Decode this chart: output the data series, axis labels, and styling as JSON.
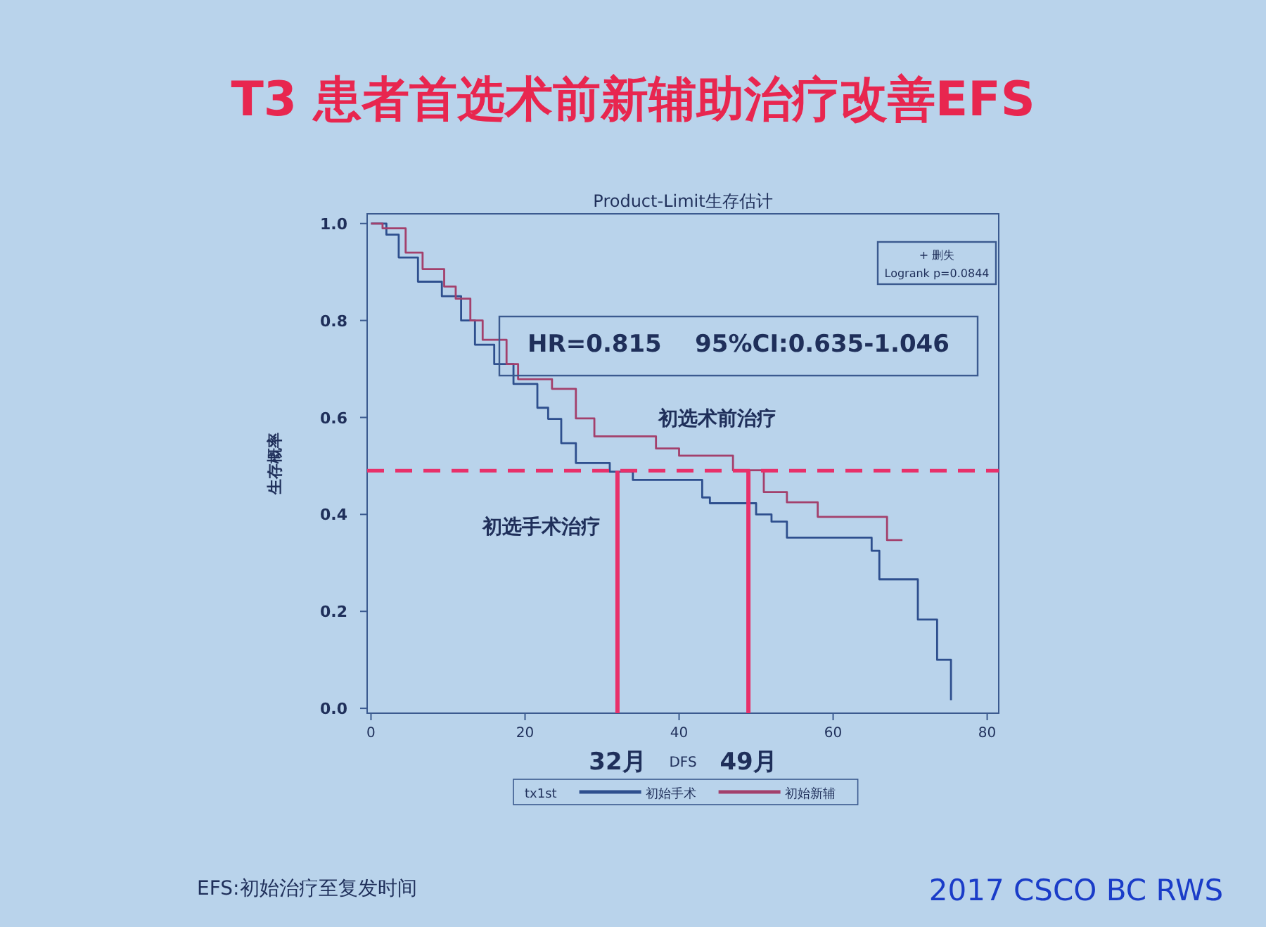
{
  "chart_data": {
    "type": "step",
    "title": "T3 患者首选术前新辅助治疗改善EFS",
    "subtitle": "Product-Limit生存估计",
    "xlabel": "DFS",
    "ylabel": "生存概率",
    "legend_title": "tx1st",
    "legend": "bottom",
    "marker": "none",
    "line_style": "solid",
    "grid": false,
    "xlim": [
      -0.5,
      81.5
    ],
    "ylim": [
      -0.01,
      1.02
    ],
    "xticks": [
      0,
      20,
      40,
      60,
      80
    ],
    "yticks": [
      {
        "value": 0,
        "label": "0.0"
      },
      0.2,
      0.4,
      0.6,
      0.8,
      {
        "value": 1,
        "label": "1.0"
      }
    ],
    "series": [
      {
        "name": "初始手术",
        "color": "#2e4f8e",
        "x": [
          0,
          2,
          3.6,
          6.1,
          9.2,
          11.7,
          13.5,
          16,
          18.5,
          21.6,
          23,
          24.7,
          26.6,
          31,
          34,
          43,
          44,
          50,
          52,
          54,
          65,
          66,
          71,
          73.5,
          75.3
        ],
        "values": [
          1,
          0.977,
          0.93,
          0.88,
          0.85,
          0.8,
          0.75,
          0.71,
          0.669,
          0.62,
          0.597,
          0.547,
          0.506,
          0.488,
          0.471,
          0.435,
          0.423,
          0.4,
          0.385,
          0.352,
          0.325,
          0.266,
          0.183,
          0.1,
          0.017
        ]
      },
      {
        "name": "初始新辅",
        "color": "#a3406c",
        "x": [
          0,
          1.5,
          4.5,
          6.7,
          9.5,
          11,
          12.9,
          14.5,
          17.6,
          19.1,
          23.5,
          26.6,
          29,
          37,
          40,
          47,
          51,
          54,
          58,
          67,
          69
        ],
        "values": [
          1,
          0.99,
          0.94,
          0.906,
          0.87,
          0.845,
          0.8,
          0.76,
          0.71,
          0.679,
          0.659,
          0.598,
          0.561,
          0.536,
          0.521,
          0.491,
          0.446,
          0.425,
          0.395,
          0.347,
          0.347
        ]
      }
    ],
    "ref_lines": [
      {
        "axis": "y",
        "value": 0.49,
        "color": "#e8306a",
        "line_style": "dashed"
      },
      {
        "axis": "x",
        "value": 32,
        "label": "32月",
        "color": "#e8306a",
        "line_style": "solid"
      },
      {
        "axis": "x",
        "value": 49,
        "label": "49月",
        "color": "#e8306a",
        "line_style": "solid"
      }
    ],
    "annotations": [
      "初选术前治疗",
      "初选手术治疗",
      "+ 删失",
      "Logrank p=0.0844",
      "HR=0.815    95%CI:0.635-1.046",
      "EFS:初始治疗至复发时间",
      "2017 CSCO BC RWS"
    ]
  }
}
